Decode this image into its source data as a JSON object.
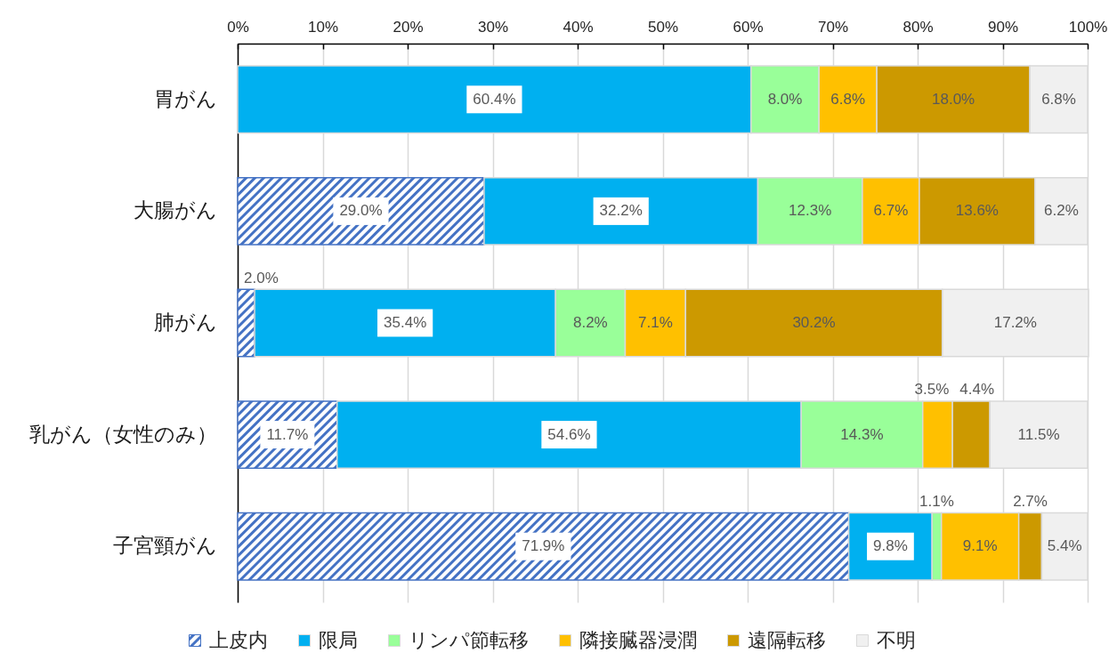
{
  "chart_data": {
    "type": "bar",
    "orientation": "horizontal",
    "stacked": true,
    "categories": [
      "胃がん",
      "大腸がん",
      "肺がん",
      "乳がん（女性のみ）",
      "子宮頸がん"
    ],
    "series": [
      {
        "name": "上皮内",
        "color": "#4472c4",
        "values": [
          null,
          29.0,
          2.0,
          11.7,
          71.9
        ],
        "value_labels": [
          null,
          "29.0%",
          "2.0%",
          "11.7%",
          "71.9%"
        ]
      },
      {
        "name": "限局",
        "color": "#00b0f0",
        "values": [
          60.4,
          32.2,
          35.4,
          54.6,
          9.8
        ],
        "value_labels": [
          "60.4%",
          "32.2%",
          "35.4%",
          "54.6%",
          "9.8%"
        ]
      },
      {
        "name": "リンパ節転移",
        "color": "#99ff99",
        "values": [
          8.0,
          12.3,
          8.2,
          14.3,
          1.1
        ],
        "value_labels": [
          "8.0%",
          "12.3%",
          "8.2%",
          "14.3%",
          "1.1%"
        ]
      },
      {
        "name": "隣接臓器浸潤",
        "color": "#ffc000",
        "values": [
          6.8,
          6.7,
          7.1,
          3.5,
          9.1
        ],
        "value_labels": [
          "6.8%",
          "6.7%",
          "7.1%",
          "3.5%",
          "9.1%"
        ]
      },
      {
        "name": "遠隔転移",
        "color": "#cc9900",
        "values": [
          18.0,
          13.6,
          30.2,
          4.4,
          2.7
        ],
        "value_labels": [
          "18.0%",
          "13.6%",
          "30.2%",
          "4.4%",
          "2.7%"
        ]
      },
      {
        "name": "不明",
        "color": "#f0f0f0",
        "values": [
          6.8,
          6.2,
          17.2,
          11.5,
          5.4
        ],
        "value_labels": [
          "6.8%",
          "6.2%",
          "17.2%",
          "11.5%",
          "5.4%"
        ]
      }
    ],
    "xlim": [
      0,
      100
    ],
    "xticks": [
      {
        "value": 0,
        "label": "0%"
      },
      {
        "value": 10,
        "label": "10%"
      },
      {
        "value": 20,
        "label": "20%"
      },
      {
        "value": 30,
        "label": "30%"
      },
      {
        "value": 40,
        "label": "40%"
      },
      {
        "value": 50,
        "label": "50%"
      },
      {
        "value": 60,
        "label": "60%"
      },
      {
        "value": 70,
        "label": "70%"
      },
      {
        "value": 80,
        "label": "80%"
      },
      {
        "value": 90,
        "label": "90%"
      },
      {
        "value": 100,
        "label": "100%"
      }
    ],
    "grid": "x",
    "legend": "bottom"
  }
}
